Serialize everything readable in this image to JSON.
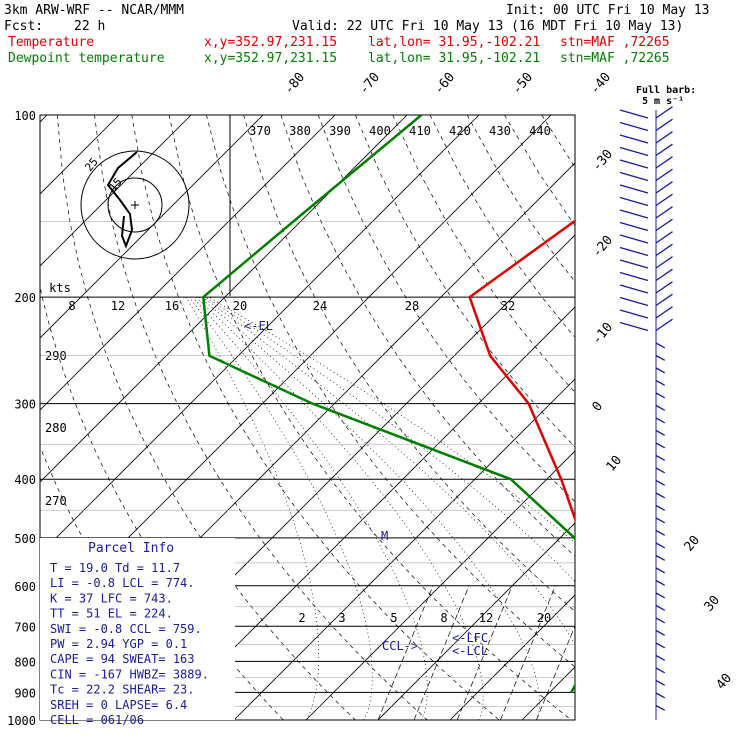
{
  "header": {
    "model": "3km ARW-WRF -- NCAR/MMM",
    "init": "Init: 00 UTC Fri 10 May 13",
    "fcst_label": "Fcst:",
    "fcst_value": "22 h",
    "valid": "Valid: 22 UTC Fri 10 May 13 (16 MDT Fri 10 May 13)",
    "temp_label": "Temperature",
    "dew_label": "Dewpoint temperature",
    "xy": "x,y=352.97,231.15",
    "latlon": "lat,lon= 31.95,-102.21",
    "stn": "stn=MAF ,72265"
  },
  "barb_legend": {
    "line1": "Full barb:",
    "line2": "5 m s⁻¹"
  },
  "colors": {
    "temperature": "#e00000",
    "dewpoint": "#008000",
    "text_blue": "#1a1aa0",
    "wind": "#1a1aa0"
  },
  "chart_data": {
    "type": "line",
    "pressure_levels": [
      "100",
      "200",
      "300",
      "400",
      "500",
      "600",
      "700",
      "800",
      "900",
      "1000"
    ],
    "temperature_isotherms": [
      "-80",
      "-70",
      "-60",
      "-50",
      "-40",
      "-30",
      "-20",
      "-10",
      "0",
      "10",
      "20",
      "30",
      "40"
    ],
    "theta_labels": [
      "370",
      "380",
      "390",
      "400",
      "410",
      "420",
      "430",
      "440"
    ],
    "dry_adiabat_side_labels": [
      "290",
      "280",
      "270"
    ],
    "mixing_ratio_labels": [
      "2",
      "3",
      "5",
      "8",
      "12",
      "20"
    ],
    "hodo_speed_labels": [
      "kts",
      "8",
      "12",
      "16",
      "20",
      "24",
      "28",
      "32"
    ],
    "series": [
      {
        "name": "Temperature",
        "points": [
          [
            100,
            -41
          ],
          [
            150,
            -52
          ],
          [
            200,
            -56
          ],
          [
            250,
            -45
          ],
          [
            300,
            -33
          ],
          [
            400,
            -18
          ],
          [
            500,
            -7
          ],
          [
            600,
            3
          ],
          [
            700,
            10
          ],
          [
            800,
            17
          ],
          [
            900,
            26
          ]
        ]
      },
      {
        "name": "Dewpoint temperature",
        "points": [
          [
            100,
            -88
          ],
          [
            150,
            -91
          ],
          [
            200,
            -93
          ],
          [
            250,
            -84
          ],
          [
            300,
            -63
          ],
          [
            400,
            -25
          ],
          [
            500,
            -8
          ],
          [
            600,
            2
          ],
          [
            700,
            5
          ],
          [
            800,
            11
          ],
          [
            900,
            13
          ]
        ]
      }
    ],
    "annotations": [
      "<-EL",
      "<-LFC",
      "<-LCL",
      "CCL->",
      "M"
    ],
    "hodograph_labels": [
      "25",
      "15"
    ]
  },
  "parcel_info": {
    "title": "Parcel Info",
    "rows": [
      "T  =    19.0 Td =  11.7",
      "LI =    -0.8 LCL =  774.",
      "K  =      37 LFC =  743.",
      "TT =      51 EL  =  224.",
      "SWI =   -0.8 CCL =  759.",
      "PW =    2.94 YGP =   0.1",
      "CAPE =    94 SWEAT=  163",
      "CIN =   -167 HWBZ= 3889.",
      "Tc =    22.2 SHEAR=  23.",
      "SREH =     0 LAPSE=  6.4",
      "CELL = 061/06"
    ]
  }
}
